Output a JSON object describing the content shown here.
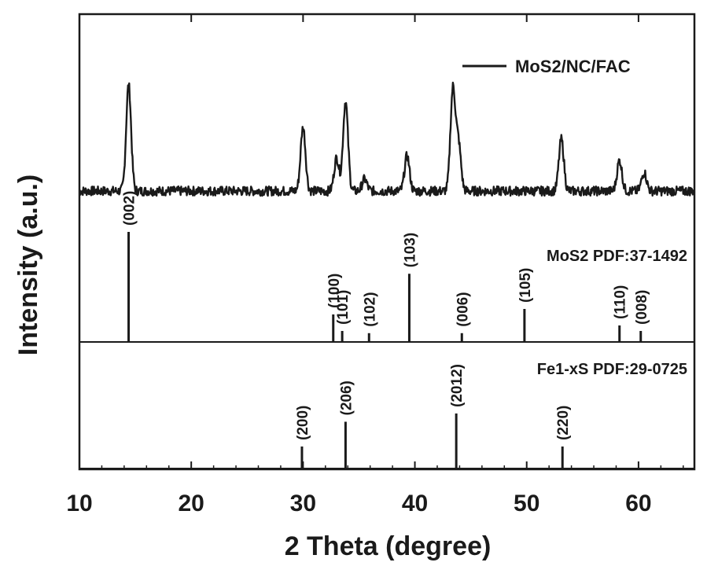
{
  "chart_data": {
    "type": "line",
    "xlabel": "2 Theta (degree)",
    "ylabel": "Intensity (a.u.)",
    "xlim": [
      10,
      65
    ],
    "xticks": [
      "10",
      "20",
      "30",
      "40",
      "50",
      "60"
    ],
    "legend": {
      "label": "MoS2/NC/FAC",
      "placement": "top-right"
    },
    "series": [
      {
        "name": "MoS2/NC/FAC",
        "peaks": [
          {
            "x": 14.4,
            "y": 0.45
          },
          {
            "x": 30.0,
            "y": 0.27
          },
          {
            "x": 33.0,
            "y": 0.14
          },
          {
            "x": 33.8,
            "y": 0.38
          },
          {
            "x": 35.5,
            "y": 0.05
          },
          {
            "x": 39.3,
            "y": 0.15
          },
          {
            "x": 43.4,
            "y": 0.43
          },
          {
            "x": 43.9,
            "y": 0.2
          },
          {
            "x": 53.1,
            "y": 0.22
          },
          {
            "x": 58.3,
            "y": 0.13
          },
          {
            "x": 60.5,
            "y": 0.08
          }
        ],
        "baseline": 0.05
      }
    ],
    "references": [
      {
        "label": "MoS2 PDF:37-1492",
        "lines": [
          {
            "x": 14.4,
            "h": 1.0,
            "hkl": "(002)"
          },
          {
            "x": 32.7,
            "h": 0.25,
            "hkl": "(100)"
          },
          {
            "x": 33.5,
            "h": 0.1,
            "hkl": "(101)"
          },
          {
            "x": 35.9,
            "h": 0.08,
            "hkl": "(102)"
          },
          {
            "x": 39.5,
            "h": 0.62,
            "hkl": "(103)"
          },
          {
            "x": 44.2,
            "h": 0.08,
            "hkl": "(006)"
          },
          {
            "x": 49.8,
            "h": 0.3,
            "hkl": "(105)"
          },
          {
            "x": 58.3,
            "h": 0.15,
            "hkl": "(110)"
          },
          {
            "x": 60.2,
            "h": 0.1,
            "hkl": "(008)"
          }
        ]
      },
      {
        "label": "Fe1-xS PDF:29-0725",
        "lines": [
          {
            "x": 29.9,
            "h": 0.4,
            "hkl": "(200)"
          },
          {
            "x": 33.8,
            "h": 0.85,
            "hkl": "(206)"
          },
          {
            "x": 43.7,
            "h": 1.0,
            "hkl": "(2012)"
          },
          {
            "x": 53.2,
            "h": 0.4,
            "hkl": "(220)"
          }
        ]
      }
    ]
  }
}
